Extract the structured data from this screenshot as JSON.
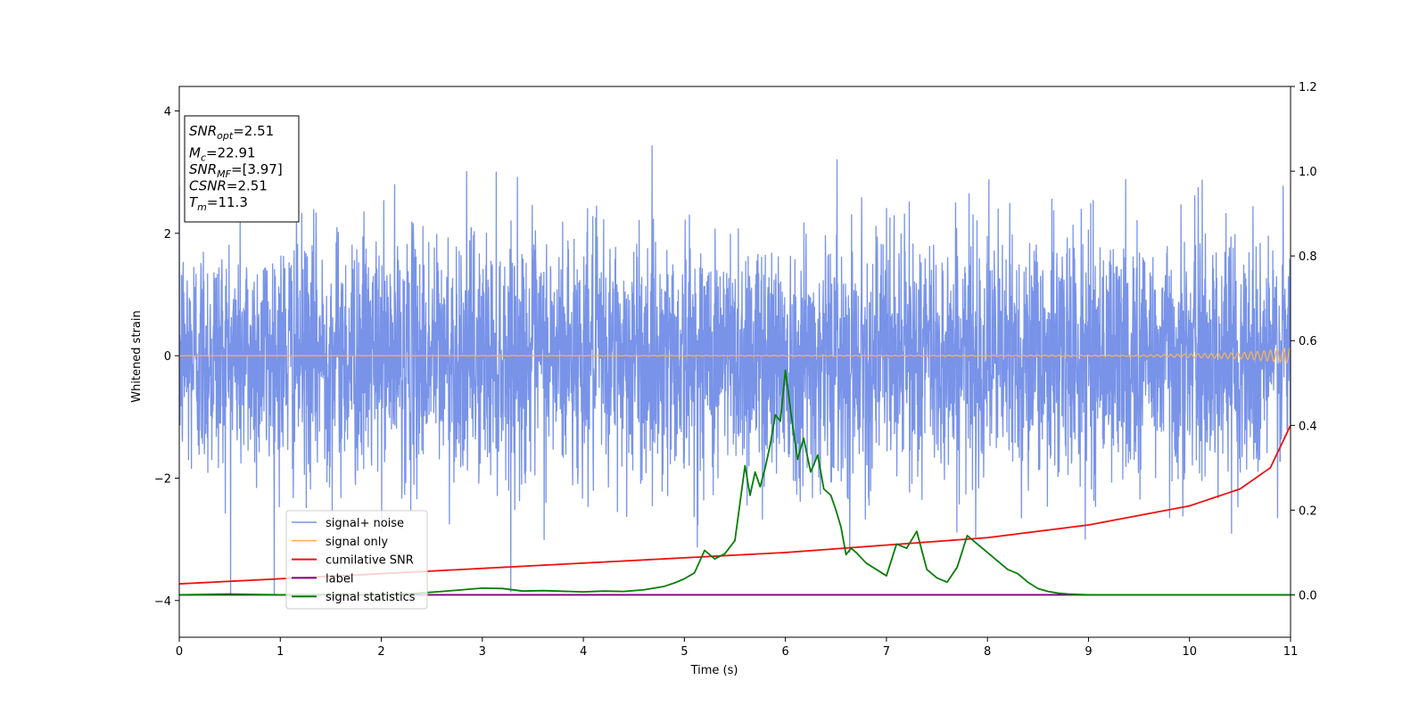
{
  "chart_data": {
    "type": "line",
    "xlabel": "Time (s)",
    "ylabel": "Whitened strain",
    "xlim": [
      0,
      11
    ],
    "ylim_left": [
      -4.6,
      4.4
    ],
    "ylim_right": [
      -0.1,
      1.2
    ],
    "xticks": [
      "0",
      "1",
      "2",
      "3",
      "4",
      "5",
      "6",
      "7",
      "8",
      "9",
      "10",
      "11"
    ],
    "yticks_left": [
      "4",
      "2",
      "0",
      "−2",
      "−4"
    ],
    "yticks_left_values": [
      4,
      2,
      0,
      -2,
      -4
    ],
    "yticks_right": [
      "1.2",
      "1.0",
      "0.8",
      "0.6",
      "0.4",
      "0.2",
      "0.0"
    ],
    "yticks_right_values": [
      1.2,
      1.0,
      0.8,
      0.6,
      0.4,
      0.2,
      0.0
    ],
    "grid": false,
    "legend_position": "lower-left",
    "annotation": [
      {
        "base": "SNR",
        "sub": "opt",
        "value": "=2.51"
      },
      {
        "base": "M",
        "sub": "c",
        "value": "=22.91"
      },
      {
        "base": "SNR",
        "sub": "MF",
        "value": "=[3.97]"
      },
      {
        "base": "CSNR",
        "sub": "",
        "value": "=2.51"
      },
      {
        "base": "T",
        "sub": "m",
        "value": "=11.3"
      }
    ],
    "series": [
      {
        "name": "signal+ noise",
        "axis": "left",
        "color": "#7893e8",
        "kind": "noise",
        "envelope": {
          "typical_amplitude": 1.0,
          "extreme_max": 3.9,
          "extreme_min": -3.9,
          "x_range": [
            0,
            11
          ]
        }
      },
      {
        "name": "signal only",
        "axis": "left",
        "color": "#f5b25a",
        "kind": "chirp",
        "x": [
          0,
          9.5,
          10.5,
          11
        ],
        "amplitude": [
          0.0,
          0.01,
          0.05,
          0.12
        ]
      },
      {
        "name": "cumilative SNR",
        "axis": "right",
        "color": "#ee1111",
        "x": [
          0,
          2,
          4,
          6,
          8,
          9,
          10,
          10.5,
          10.8,
          11
        ],
        "values": [
          0.026,
          0.05,
          0.075,
          0.1,
          0.135,
          0.165,
          0.21,
          0.25,
          0.3,
          0.4
        ]
      },
      {
        "name": "label",
        "axis": "right",
        "color": "#800080",
        "x": [
          0,
          11
        ],
        "values": [
          0.0,
          0.0
        ]
      },
      {
        "name": "signal statistics",
        "axis": "right",
        "color": "#087d08",
        "x": [
          0,
          0.5,
          1,
          1.5,
          2,
          2.3,
          2.6,
          2.8,
          3.0,
          3.2,
          3.4,
          3.6,
          4.0,
          4.2,
          4.4,
          4.6,
          4.8,
          4.9,
          5.0,
          5.1,
          5.2,
          5.3,
          5.4,
          5.5,
          5.6,
          5.65,
          5.7,
          5.75,
          5.8,
          5.85,
          5.9,
          5.95,
          6.0,
          6.06,
          6.12,
          6.18,
          6.25,
          6.32,
          6.38,
          6.45,
          6.5,
          6.55,
          6.6,
          6.65,
          6.7,
          6.8,
          6.9,
          7.0,
          7.1,
          7.2,
          7.3,
          7.4,
          7.5,
          7.6,
          7.7,
          7.8,
          7.9,
          8.0,
          8.1,
          8.2,
          8.3,
          8.4,
          8.5,
          8.6,
          8.7,
          8.8,
          9.0,
          9.5,
          10,
          11
        ],
        "values": [
          0.0,
          0.002,
          0.0,
          0.001,
          0.0,
          0.003,
          0.008,
          0.012,
          0.016,
          0.015,
          0.009,
          0.01,
          0.007,
          0.009,
          0.008,
          0.012,
          0.02,
          0.028,
          0.038,
          0.052,
          0.105,
          0.085,
          0.097,
          0.128,
          0.305,
          0.235,
          0.29,
          0.255,
          0.3,
          0.355,
          0.425,
          0.41,
          0.53,
          0.42,
          0.32,
          0.37,
          0.29,
          0.33,
          0.25,
          0.235,
          0.2,
          0.16,
          0.095,
          0.11,
          0.1,
          0.075,
          0.06,
          0.045,
          0.12,
          0.11,
          0.15,
          0.06,
          0.04,
          0.03,
          0.065,
          0.14,
          0.12,
          0.1,
          0.08,
          0.06,
          0.05,
          0.03,
          0.015,
          0.008,
          0.004,
          0.002,
          0.0,
          0.0,
          0.0,
          0.0
        ]
      }
    ]
  }
}
